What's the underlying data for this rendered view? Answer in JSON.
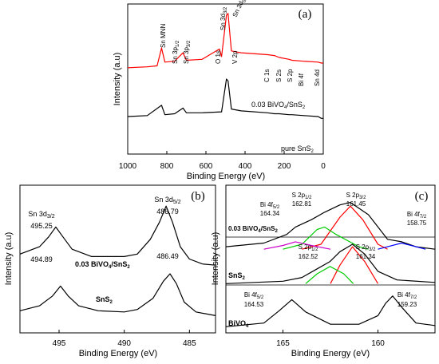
{
  "chart_data": [
    {
      "panel": "(a)",
      "type": "line",
      "xlabel": "Binding Energy (eV)",
      "ylabel": "Intensity (a.u)",
      "xlim": [
        1000,
        0
      ],
      "x_ticks": [
        1000,
        800,
        600,
        400,
        200,
        0
      ],
      "series": [
        {
          "name": "0.03 BiVO4/SnS2",
          "color": "#ff0000",
          "x": [
            1000,
            900,
            850,
            827,
            810,
            760,
            717,
            700,
            620,
            531,
            520,
            495,
            487,
            470,
            420,
            285,
            250,
            225,
            175,
            160,
            100,
            26,
            10,
            0
          ],
          "values": [
            92,
            93,
            94,
            113,
            98,
            99,
            108,
            100,
            101,
            112,
            104,
            148,
            150,
            110,
            108,
            106,
            105,
            103,
            101,
            100,
            99,
            98,
            97,
            97
          ]
        },
        {
          "name": "pure SnS2",
          "color": "#000000",
          "x": [
            1000,
            900,
            827,
            810,
            760,
            717,
            700,
            620,
            520,
            495,
            487,
            470,
            420,
            285,
            250,
            225,
            175,
            160,
            100,
            26,
            10,
            0
          ],
          "values": [
            40,
            41,
            52,
            42,
            43,
            49,
            44,
            44,
            45,
            80,
            78,
            48,
            46,
            44,
            43,
            43,
            42,
            42,
            41,
            40,
            38,
            38
          ]
        }
      ],
      "annotations": [
        "Sn MNN",
        "Sn 3p1/2",
        "Sn 3p3/2",
        "O 1s",
        "Sn 3d3/2",
        "Sn 3d5/2",
        "V 2p",
        "C 1s",
        "S 2s",
        "S 2p",
        "Bi 4f",
        "Sn 4d"
      ],
      "legend_labels": [
        "0.03 BiVO4/SnS2",
        "pure SnS2"
      ]
    },
    {
      "panel": "(b)",
      "type": "line",
      "xlabel": "Binding Energy (eV)",
      "ylabel": "Intensity (a.u)",
      "xlim": [
        498,
        483
      ],
      "x_ticks": [
        495,
        490,
        485
      ],
      "series": [
        {
          "name": "0.03 BiVO4/SnS2",
          "x": [
            498,
            496.5,
            495.8,
            495.25,
            494.7,
            494,
            492.5,
            490,
            489,
            488,
            487.3,
            486.79,
            486.3,
            485.7,
            485,
            484,
            483
          ],
          "values": [
            64,
            70,
            78,
            86,
            78,
            68,
            62,
            62,
            64,
            76,
            90,
            103,
            90,
            70,
            60,
            56,
            55
          ]
        },
        {
          "name": "SnS2",
          "x": [
            498,
            496.5,
            495.5,
            494.89,
            494.3,
            493.5,
            492,
            490,
            489,
            487.8,
            487,
            486.49,
            486,
            485.4,
            484.5,
            483
          ],
          "values": [
            18,
            22,
            30,
            38,
            30,
            22,
            18,
            17,
            19,
            28,
            42,
            48,
            40,
            25,
            17,
            14
          ]
        }
      ],
      "annotations": [
        "Sn 3d3/2",
        "495.25",
        "Sn 3d5/2",
        "486.79",
        "494.89",
        "486.49"
      ],
      "legend_labels": [
        "0.03 BiVO4/SnS2",
        "SnS2"
      ]
    },
    {
      "panel": "(c)",
      "type": "line",
      "xlabel": "Binding Energy (eV)",
      "ylabel": "Intensity (a.u)",
      "xlim": [
        168,
        157
      ],
      "x_ticks": [
        165,
        160
      ],
      "series": [
        {
          "name": "0.03 BiVO4/SnS2",
          "color": "#000000",
          "x": [
            168,
            166,
            164.8,
            164.34,
            163.5,
            162.81,
            162,
            161.45,
            160.5,
            159.5,
            158.75,
            158,
            157
          ],
          "values": [
            70,
            73,
            80,
            86,
            92,
            98,
            104,
            106,
            96,
            76,
            74,
            70,
            68
          ]
        },
        {
          "name": "S 2p3/2 fit",
          "color": "#ff0000",
          "x": [
            164,
            163,
            162,
            161.45,
            160.8,
            160,
            159.5
          ],
          "values": [
            68,
            72,
            94,
            103,
            92,
            72,
            68
          ]
        },
        {
          "name": "S 2p1/2 fit",
          "color": "#00cc00",
          "x": [
            165,
            164,
            163.2,
            162.81,
            162.2,
            161,
            160.5
          ],
          "values": [
            68,
            72,
            84,
            86,
            80,
            70,
            68
          ]
        },
        {
          "name": "Bi 4f5/2 fit",
          "color": "#cc00cc",
          "x": [
            166,
            165,
            164.34,
            163.5,
            162.5
          ],
          "values": [
            68,
            71,
            74,
            71,
            68
          ]
        },
        {
          "name": "Bi 4f7/2 fit",
          "color": "#0000ff",
          "x": [
            160,
            159.5,
            158.75,
            158,
            157.5
          ],
          "values": [
            68,
            70,
            73,
            70,
            68
          ]
        },
        {
          "name": "SnS2",
          "color": "#000000",
          "x": [
            168,
            165,
            164,
            163.2,
            162.52,
            162,
            161.34,
            160.7,
            160,
            159,
            157
          ],
          "values": [
            40,
            42,
            45,
            52,
            58,
            66,
            72,
            64,
            50,
            43,
            41
          ]
        },
        {
          "name": "SnS2 S 2p3/2 fit",
          "color": "#ff0000",
          "x": [
            162.5,
            162,
            161.34,
            160.7,
            160
          ],
          "values": [
            40,
            55,
            70,
            58,
            40
          ]
        },
        {
          "name": "SnS2 S 2p1/2 fit",
          "color": "#00cc00",
          "x": [
            163.8,
            163.2,
            162.52,
            161.8,
            161.3
          ],
          "values": [
            40,
            48,
            54,
            48,
            40
          ]
        },
        {
          "name": "BiVO4",
          "color": "#000000",
          "x": [
            168,
            166,
            165.2,
            164.53,
            163.8,
            162.5,
            161,
            160,
            159.6,
            159.23,
            158.7,
            158,
            157
          ],
          "values": [
            5,
            8,
            18,
            27,
            17,
            7,
            7,
            14,
            24,
            30,
            20,
            8,
            6
          ]
        }
      ],
      "annotations": [
        "Bi 4f5/2",
        "164.34",
        "S 2p1/2",
        "162.81",
        "S 2p3/2",
        "161.45",
        "Bi 4f7/2",
        "158.75",
        "S 2p1/2",
        "162.52",
        "S 2p3/2",
        "161.34",
        "Bi 4f5/2",
        "164.53",
        "Bi 4f7/2",
        "159.23"
      ],
      "legend_labels": [
        "0.03 BiVO4/SnS2",
        "SnS2",
        "BiVO4"
      ]
    }
  ]
}
